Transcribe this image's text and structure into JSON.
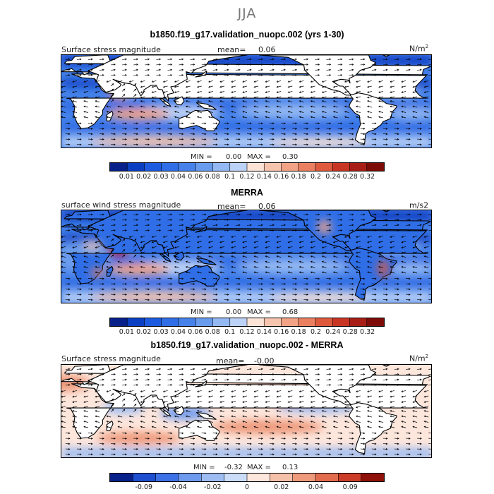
{
  "season": "JJA",
  "colors": {
    "seq": [
      "#08208a",
      "#0a3fc2",
      "#1d5be0",
      "#2f6ee6",
      "#4682ea",
      "#6a9cee",
      "#93b8f2",
      "#bcd2f6",
      "#fbe3d6",
      "#f7c4ad",
      "#f2a385",
      "#eb8060",
      "#df5a3c",
      "#c93523",
      "#a81d15",
      "#7d0c08"
    ],
    "div": [
      "#08208a",
      "#1d4fd0",
      "#3d72e6",
      "#6f9bee",
      "#9dbcf2",
      "#cadcf7",
      "#fde6dc",
      "#f6c1aa",
      "#ee9a7c",
      "#e26d4e",
      "#cb3d28",
      "#8f1109"
    ],
    "land": "#ffffff",
    "coast": "#000000"
  },
  "panels": [
    {
      "title": "b1850.f19_g17.validation_nuopc.002 (yrs 1-30)",
      "left_label": "Surface stress magnitude",
      "mean_label": "mean=",
      "mean_value": "0.06",
      "unit_base": "N/m",
      "unit_sup": "2",
      "min_label": "MIN =",
      "min_value": "0.00",
      "max_label": "MAX =",
      "max_value": "0.30",
      "colorbar": "seq",
      "tick_labels": [
        "0.01",
        "0.02",
        "0.03",
        "0.04",
        "0.06",
        "0.08",
        "0.1",
        "0.12",
        "0.14",
        "0.16",
        "0.18",
        "0.2",
        "0.24",
        "0.28",
        "0.32"
      ]
    },
    {
      "title": "MERRA",
      "left_label": "surface wind stress magnitude",
      "mean_label": "mean=",
      "mean_value": "0.06",
      "unit_base": "m/s2",
      "unit_sup": "",
      "min_label": "MIN =",
      "min_value": "0.00",
      "max_label": "MAX =",
      "max_value": "0.68",
      "colorbar": "seq",
      "tick_labels": [
        "0.01",
        "0.02",
        "0.03",
        "0.04",
        "0.06",
        "0.08",
        "0.1",
        "0.12",
        "0.14",
        "0.16",
        "0.18",
        "0.2",
        "0.24",
        "0.28",
        "0.32"
      ]
    },
    {
      "title": "b1850.f19_g17.validation_nuopc.002 - MERRA",
      "left_label": "Surface stress magnitude",
      "mean_label": "mean=",
      "mean_value": "-0.00",
      "unit_base": "N/m",
      "unit_sup": "2",
      "min_label": "MIN =",
      "min_value": "-0.32",
      "max_label": "MAX =",
      "max_value": "0.13",
      "colorbar": "div",
      "tick_labels": [
        "-0.09",
        "-0.04",
        "-0.02",
        "0",
        "0.02",
        "0.04",
        "0.09"
      ]
    }
  ],
  "chart_data": [
    {
      "type": "heatmap",
      "title": "b1850.f19_g17.validation_nuopc.002 (yrs 1-30)",
      "variable": "Surface stress magnitude",
      "units": "N/m^2",
      "mean": 0.06,
      "min": 0.0,
      "max": 0.3,
      "colorbar_levels": [
        0.01,
        0.02,
        0.03,
        0.04,
        0.06,
        0.08,
        0.1,
        0.12,
        0.14,
        0.16,
        0.18,
        0.2,
        0.24,
        0.28,
        0.32
      ]
    },
    {
      "type": "heatmap",
      "title": "MERRA",
      "variable": "surface wind stress magnitude",
      "units": "m/s2",
      "mean": 0.06,
      "min": 0.0,
      "max": 0.68,
      "colorbar_levels": [
        0.01,
        0.02,
        0.03,
        0.04,
        0.06,
        0.08,
        0.1,
        0.12,
        0.14,
        0.16,
        0.18,
        0.2,
        0.24,
        0.28,
        0.32
      ]
    },
    {
      "type": "heatmap",
      "title": "b1850.f19_g17.validation_nuopc.002 - MERRA",
      "variable": "Surface stress magnitude",
      "units": "N/m^2",
      "mean": -0.0,
      "min": -0.32,
      "max": 0.13,
      "colorbar_levels": [
        -0.09,
        -0.04,
        -0.02,
        0,
        0.02,
        0.04,
        0.09
      ]
    }
  ]
}
